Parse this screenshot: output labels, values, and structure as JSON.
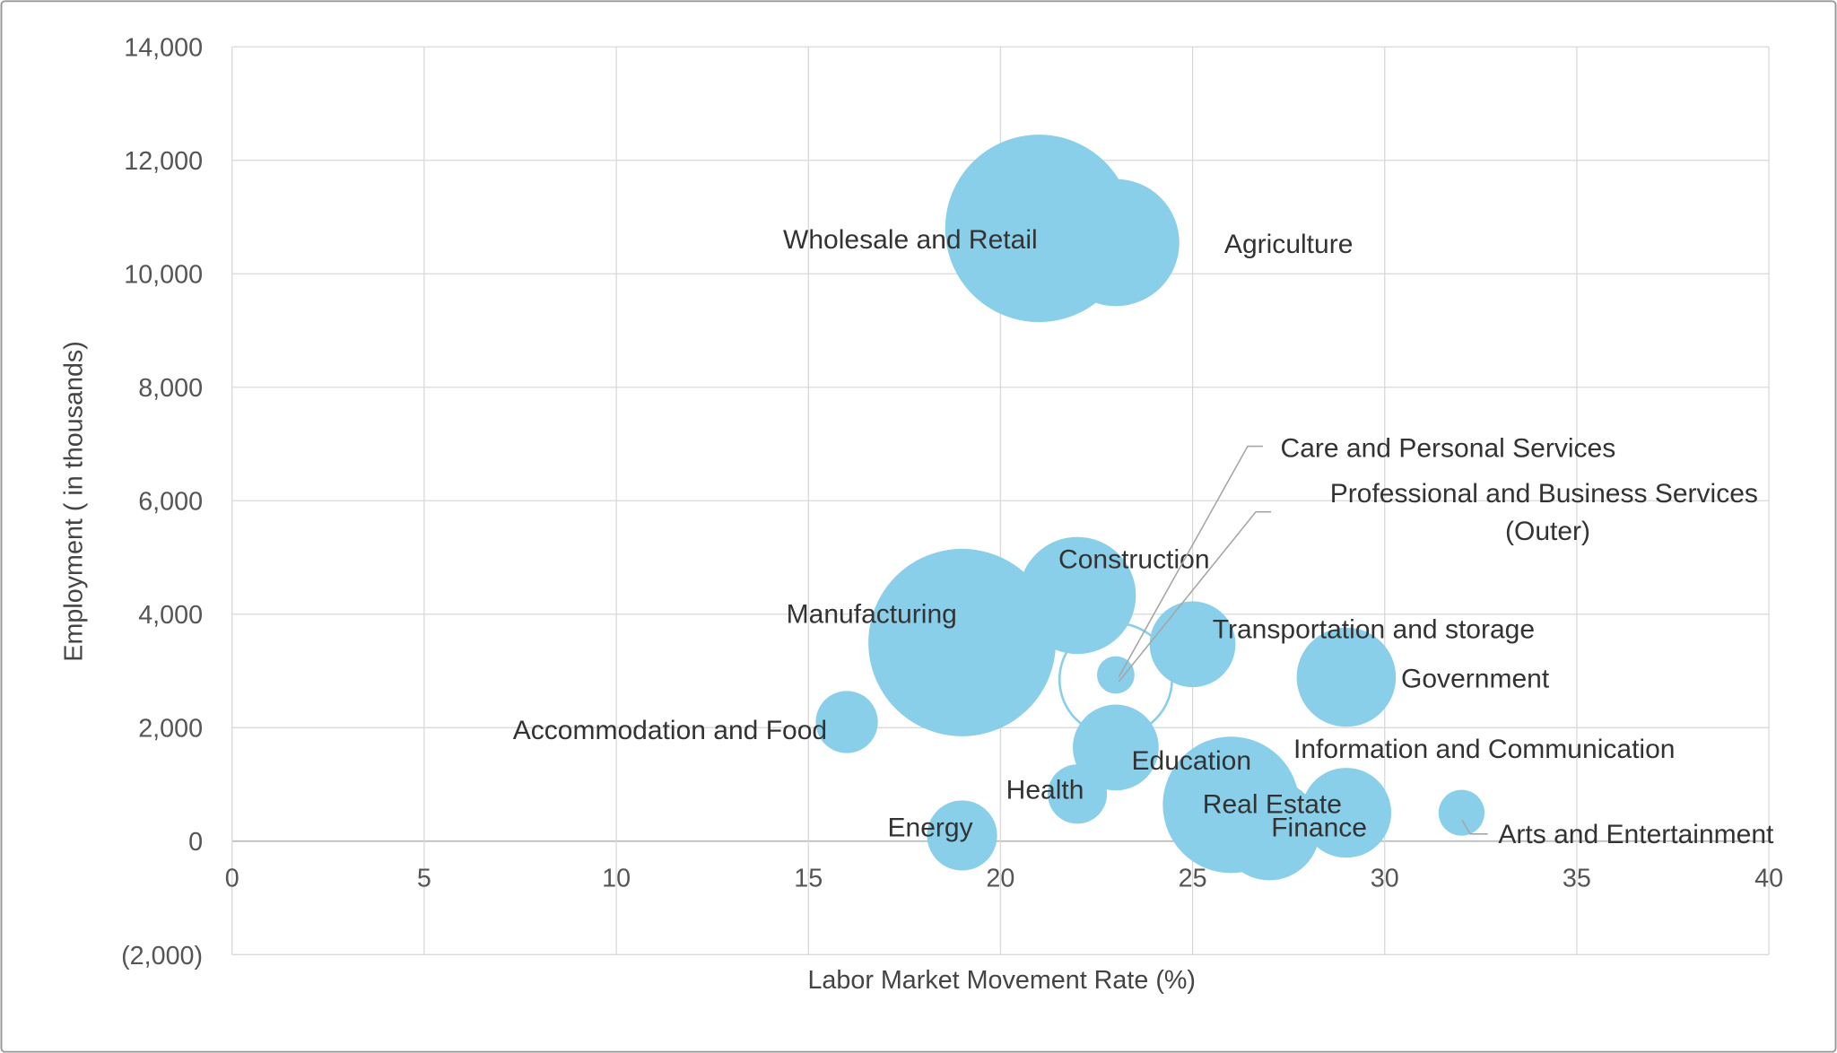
{
  "chart_data": {
    "type": "bubble",
    "x_label": "Labor Market Movement Rate (%)",
    "y_label": "Employment ( in thousands)",
    "color": "#89cfea",
    "grid": true,
    "xlim": [
      0,
      40
    ],
    "xticks": [
      0,
      5,
      10,
      15,
      20,
      25,
      30,
      35,
      40
    ],
    "ylim": [
      -2000,
      14000
    ],
    "yticks": [
      {
        "value": -2000,
        "label": "(2,000)"
      },
      0,
      {
        "value": 2000,
        "label": "2,000"
      },
      {
        "value": 4000,
        "label": "4,000"
      },
      {
        "value": 6000,
        "label": "6,000"
      },
      {
        "value": 8000,
        "label": "8,000"
      },
      {
        "value": 10000,
        "label": "10,000"
      },
      {
        "value": 12000,
        "label": "12,000"
      },
      {
        "value": 14000,
        "label": "14,000"
      }
    ],
    "points": [
      {
        "name": "Agriculture",
        "x": 23,
        "y": 10550,
        "size": 46
      },
      {
        "name": "Wholesale and Retail",
        "x": 21,
        "y": 10800,
        "size": 100
      },
      {
        "name": "Construction",
        "x": 22,
        "y": 4330,
        "size": 39
      },
      {
        "name": "Manufacturing",
        "x": 19,
        "y": 3500,
        "size": 100
      },
      {
        "name": "Professional and Business Services (Outer)",
        "x": 23,
        "y": 2850,
        "size": 36,
        "hollow": true
      },
      {
        "name": "Care and Personal Services",
        "x": 23,
        "y": 2930,
        "size": 4
      },
      {
        "name": "Transportation and storage",
        "x": 25,
        "y": 3470,
        "size": 21
      },
      {
        "name": "Government",
        "x": 29,
        "y": 2890,
        "size": 28
      },
      {
        "name": "Accommodation and Food",
        "x": 16,
        "y": 2100,
        "size": 11
      },
      {
        "name": "Education",
        "x": 23,
        "y": 1650,
        "size": 21
      },
      {
        "name": "Health",
        "x": 22,
        "y": 830,
        "size": 10
      },
      {
        "name": "Energy",
        "x": 19,
        "y": 100,
        "size": 14
      },
      {
        "name": "Real Estate",
        "x": 26,
        "y": 640,
        "size": 53
      },
      {
        "name": "Finance",
        "x": 27,
        "y": 200,
        "size": 29
      },
      {
        "name": "Information and Communication",
        "x": 29,
        "y": 500,
        "size": 23
      },
      {
        "name": "Arts and Entertainment",
        "x": 32,
        "y": 500,
        "size": 6
      }
    ]
  }
}
